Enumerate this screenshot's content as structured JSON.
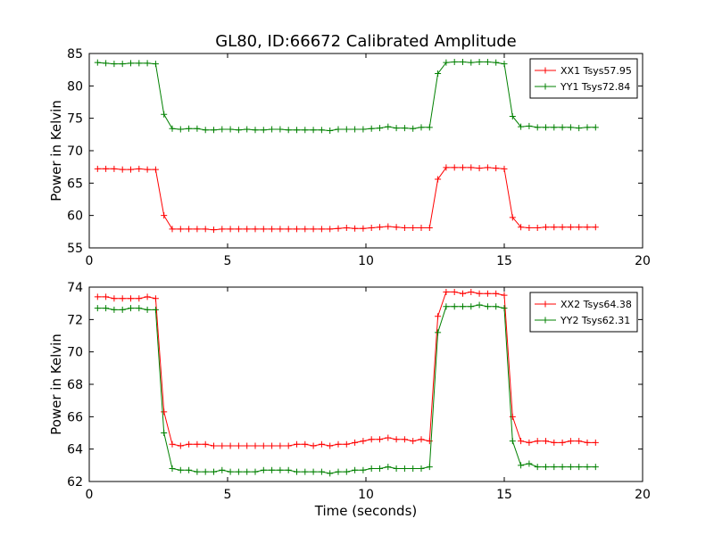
{
  "title": "GL80, ID:66672 Calibrated Amplitude",
  "chart_data": [
    {
      "type": "line",
      "xlabel": "",
      "ylabel": "Power in Kelvin",
      "xlim": [
        0,
        20
      ],
      "ylim": [
        55,
        85
      ],
      "xticks": [
        0,
        5,
        10,
        15,
        20
      ],
      "yticks": [
        55,
        60,
        65,
        70,
        75,
        80,
        85
      ],
      "grid": false,
      "legend_position": "top-right",
      "series": [
        {
          "name": "XX1 Tsys57.95",
          "color": "#ff0000",
          "x": [
            0.3,
            0.6,
            0.9,
            1.2,
            1.5,
            1.8,
            2.1,
            2.4,
            2.7,
            3.0,
            3.3,
            3.6,
            3.9,
            4.2,
            4.5,
            4.8,
            5.1,
            5.4,
            5.7,
            6.0,
            6.3,
            6.6,
            6.9,
            7.2,
            7.5,
            7.8,
            8.1,
            8.4,
            8.7,
            9.0,
            9.3,
            9.6,
            9.9,
            10.2,
            10.5,
            10.8,
            11.1,
            11.4,
            11.7,
            12.0,
            12.3,
            12.6,
            12.9,
            13.2,
            13.5,
            13.8,
            14.1,
            14.4,
            14.7,
            15.0,
            15.3,
            15.6,
            15.9,
            16.2,
            16.5,
            16.8,
            17.1,
            17.4,
            17.7,
            18.0,
            18.3
          ],
          "y": [
            67.2,
            67.2,
            67.2,
            67.1,
            67.1,
            67.2,
            67.1,
            67.1,
            60.0,
            57.9,
            57.9,
            57.9,
            57.9,
            57.9,
            57.8,
            57.9,
            57.9,
            57.9,
            57.9,
            57.9,
            57.9,
            57.9,
            57.9,
            57.9,
            57.9,
            57.9,
            57.9,
            57.9,
            57.9,
            58.0,
            58.1,
            58.0,
            58.0,
            58.1,
            58.2,
            58.3,
            58.2,
            58.1,
            58.1,
            58.1,
            58.1,
            65.6,
            67.4,
            67.4,
            67.4,
            67.4,
            67.3,
            67.4,
            67.3,
            67.2,
            59.7,
            58.2,
            58.1,
            58.1,
            58.2,
            58.2,
            58.2,
            58.2,
            58.2,
            58.2,
            58.2
          ]
        },
        {
          "name": "YY1 Tsys72.84",
          "color": "#008000",
          "x": [
            0.3,
            0.6,
            0.9,
            1.2,
            1.5,
            1.8,
            2.1,
            2.4,
            2.7,
            3.0,
            3.3,
            3.6,
            3.9,
            4.2,
            4.5,
            4.8,
            5.1,
            5.4,
            5.7,
            6.0,
            6.3,
            6.6,
            6.9,
            7.2,
            7.5,
            7.8,
            8.1,
            8.4,
            8.7,
            9.0,
            9.3,
            9.6,
            9.9,
            10.2,
            10.5,
            10.8,
            11.1,
            11.4,
            11.7,
            12.0,
            12.3,
            12.6,
            12.9,
            13.2,
            13.5,
            13.8,
            14.1,
            14.4,
            14.7,
            15.0,
            15.3,
            15.6,
            15.9,
            16.2,
            16.5,
            16.8,
            17.1,
            17.4,
            17.7,
            18.0,
            18.3
          ],
          "y": [
            83.6,
            83.5,
            83.4,
            83.4,
            83.5,
            83.5,
            83.5,
            83.4,
            75.6,
            73.4,
            73.3,
            73.4,
            73.4,
            73.2,
            73.2,
            73.3,
            73.3,
            73.2,
            73.3,
            73.2,
            73.2,
            73.3,
            73.3,
            73.2,
            73.2,
            73.2,
            73.2,
            73.2,
            73.1,
            73.3,
            73.3,
            73.3,
            73.3,
            73.4,
            73.5,
            73.7,
            73.5,
            73.5,
            73.4,
            73.6,
            73.6,
            81.9,
            83.6,
            83.7,
            83.7,
            83.6,
            83.7,
            83.7,
            83.6,
            83.4,
            75.3,
            73.7,
            73.8,
            73.6,
            73.6,
            73.6,
            73.6,
            73.6,
            73.5,
            73.6,
            73.6
          ]
        }
      ]
    },
    {
      "type": "line",
      "xlabel": "Time (seconds)",
      "ylabel": "Power in Kelvin",
      "xlim": [
        0,
        20
      ],
      "ylim": [
        62,
        74
      ],
      "xticks": [
        0,
        5,
        10,
        15,
        20
      ],
      "yticks": [
        62,
        64,
        66,
        68,
        70,
        72,
        74
      ],
      "grid": false,
      "legend_position": "top-right",
      "series": [
        {
          "name": "XX2 Tsys64.38",
          "color": "#ff0000",
          "x": [
            0.3,
            0.6,
            0.9,
            1.2,
            1.5,
            1.8,
            2.1,
            2.4,
            2.7,
            3.0,
            3.3,
            3.6,
            3.9,
            4.2,
            4.5,
            4.8,
            5.1,
            5.4,
            5.7,
            6.0,
            6.3,
            6.6,
            6.9,
            7.2,
            7.5,
            7.8,
            8.1,
            8.4,
            8.7,
            9.0,
            9.3,
            9.6,
            9.9,
            10.2,
            10.5,
            10.8,
            11.1,
            11.4,
            11.7,
            12.0,
            12.3,
            12.6,
            12.9,
            13.2,
            13.5,
            13.8,
            14.1,
            14.4,
            14.7,
            15.0,
            15.3,
            15.6,
            15.9,
            16.2,
            16.5,
            16.8,
            17.1,
            17.4,
            17.7,
            18.0,
            18.3
          ],
          "y": [
            73.4,
            73.4,
            73.3,
            73.3,
            73.3,
            73.3,
            73.4,
            73.3,
            66.3,
            64.3,
            64.2,
            64.3,
            64.3,
            64.3,
            64.2,
            64.2,
            64.2,
            64.2,
            64.2,
            64.2,
            64.2,
            64.2,
            64.2,
            64.2,
            64.3,
            64.3,
            64.2,
            64.3,
            64.2,
            64.3,
            64.3,
            64.4,
            64.5,
            64.6,
            64.6,
            64.7,
            64.6,
            64.6,
            64.5,
            64.6,
            64.5,
            72.2,
            73.7,
            73.7,
            73.6,
            73.7,
            73.6,
            73.6,
            73.6,
            73.5,
            66.0,
            64.5,
            64.4,
            64.5,
            64.5,
            64.4,
            64.4,
            64.5,
            64.5,
            64.4,
            64.4
          ]
        },
        {
          "name": "YY2 Tsys62.31",
          "color": "#008000",
          "x": [
            0.3,
            0.6,
            0.9,
            1.2,
            1.5,
            1.8,
            2.1,
            2.4,
            2.7,
            3.0,
            3.3,
            3.6,
            3.9,
            4.2,
            4.5,
            4.8,
            5.1,
            5.4,
            5.7,
            6.0,
            6.3,
            6.6,
            6.9,
            7.2,
            7.5,
            7.8,
            8.1,
            8.4,
            8.7,
            9.0,
            9.3,
            9.6,
            9.9,
            10.2,
            10.5,
            10.8,
            11.1,
            11.4,
            11.7,
            12.0,
            12.3,
            12.6,
            12.9,
            13.2,
            13.5,
            13.8,
            14.1,
            14.4,
            14.7,
            15.0,
            15.3,
            15.6,
            15.9,
            16.2,
            16.5,
            16.8,
            17.1,
            17.4,
            17.7,
            18.0,
            18.3
          ],
          "y": [
            72.7,
            72.7,
            72.6,
            72.6,
            72.7,
            72.7,
            72.6,
            72.6,
            65.0,
            62.8,
            62.7,
            62.7,
            62.6,
            62.6,
            62.6,
            62.7,
            62.6,
            62.6,
            62.6,
            62.6,
            62.7,
            62.7,
            62.7,
            62.7,
            62.6,
            62.6,
            62.6,
            62.6,
            62.5,
            62.6,
            62.6,
            62.7,
            62.7,
            62.8,
            62.8,
            62.9,
            62.8,
            62.8,
            62.8,
            62.8,
            62.9,
            71.2,
            72.8,
            72.8,
            72.8,
            72.8,
            72.9,
            72.8,
            72.8,
            72.7,
            64.5,
            63.0,
            63.1,
            62.9,
            62.9,
            62.9,
            62.9,
            62.9,
            62.9,
            62.9,
            62.9
          ]
        }
      ]
    }
  ]
}
